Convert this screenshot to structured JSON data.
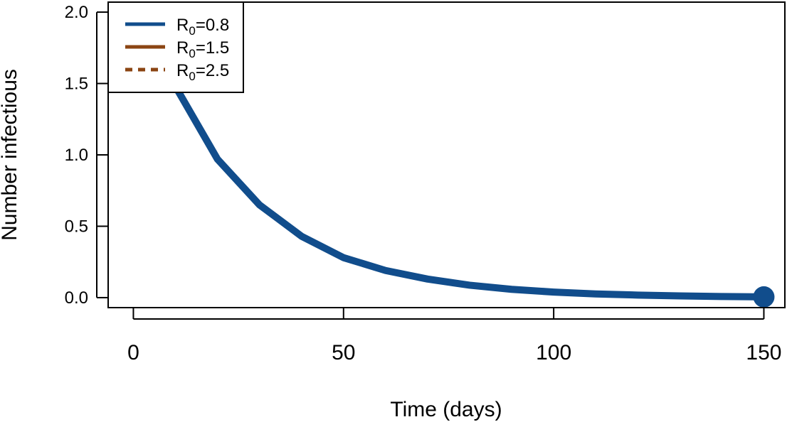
{
  "chart_data": {
    "type": "line",
    "title": "",
    "xlabel": "Time (days)",
    "ylabel": "Number infectious",
    "xlim": [
      -6,
      155
    ],
    "ylim": [
      -0.07,
      2.07
    ],
    "x_ticks": [
      0,
      50,
      100,
      150
    ],
    "x_tick_labels": [
      "0",
      "50",
      "100",
      "150"
    ],
    "y_ticks": [
      0,
      0.5,
      1,
      1.5,
      2
    ],
    "y_tick_labels": [
      "0.0",
      "0.5",
      "1.0",
      "1.5",
      "2.0"
    ],
    "grid": false,
    "legend_position": "top-left",
    "legend": [
      {
        "base": "R",
        "sub": "0",
        "suffix": "=0.8",
        "color": "#114d8c",
        "dash": "solid"
      },
      {
        "base": "R",
        "sub": "0",
        "suffix": "=1.5",
        "color": "#8b4513",
        "dash": "solid"
      },
      {
        "base": "R",
        "sub": "0",
        "suffix": "=2.5",
        "color": "#8b4513",
        "dash": "dotted"
      }
    ],
    "series": [
      {
        "name": "R0=0.8",
        "color": "#114d8c",
        "x": [
          0,
          10,
          20,
          30,
          40,
          50,
          60,
          70,
          80,
          90,
          100,
          110,
          120,
          130,
          140,
          150
        ],
        "y": [
          2.0,
          1.48,
          0.97,
          0.65,
          0.43,
          0.28,
          0.19,
          0.13,
          0.087,
          0.058,
          0.039,
          0.026,
          0.018,
          0.012,
          0.008,
          0.005
        ]
      }
    ],
    "end_marker": {
      "x": 150,
      "y": 0.005
    }
  }
}
